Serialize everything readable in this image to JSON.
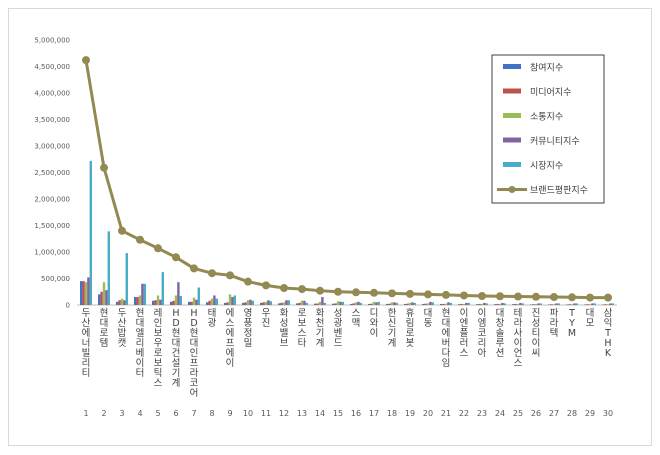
{
  "chart_data": {
    "type": "bar",
    "title": "",
    "xlabel": "",
    "ylabel": "",
    "ylim": [
      0,
      5000000
    ],
    "ytick_step": 500000,
    "ytick_labels": [
      "0",
      "500,000",
      "1,000,000",
      "1,500,000",
      "2,000,000",
      "2,500,000",
      "3,000,000",
      "3,500,000",
      "4,000,000",
      "4,500,000",
      "5,000,000"
    ],
    "grid": false,
    "legend_position": "top-right",
    "ranks": [
      "1",
      "2",
      "3",
      "4",
      "5",
      "6",
      "7",
      "8",
      "9",
      "10",
      "11",
      "12",
      "13",
      "14",
      "15",
      "16",
      "17",
      "18",
      "19",
      "20",
      "21",
      "22",
      "23",
      "24",
      "25",
      "26",
      "27",
      "28",
      "29",
      "30"
    ],
    "categories": [
      "두산에너빌리티",
      "현대로템",
      "두산밥캣",
      "현대엘리베이터",
      "레인보우로보틱스",
      "HD현대건설기계",
      "HD현대인프라코어",
      "태광",
      "에스에프에이",
      "영풍정밀",
      "우진",
      "화성밸브",
      "로보스타",
      "화천기계",
      "성광벤드",
      "스맥",
      "디와이",
      "한신기계",
      "휴림로봇",
      "대동",
      "현대에버다임",
      "이엔플러스",
      "이엠코리아",
      "대창솔루션",
      "테라사이언스",
      "진성티이씨",
      "파라텍",
      "TYM",
      "대모",
      "삼익THK"
    ],
    "series": [
      {
        "name": "참여지수",
        "kind": "bar",
        "color": "#4472c4",
        "values": [
          450000,
          200000,
          60000,
          150000,
          80000,
          60000,
          60000,
          50000,
          40000,
          40000,
          40000,
          30000,
          30000,
          25000,
          25000,
          20000,
          20000,
          20000,
          20000,
          20000,
          20000,
          15000,
          15000,
          15000,
          15000,
          10000,
          10000,
          10000,
          10000,
          10000
        ]
      },
      {
        "name": "미디어지수",
        "kind": "bar",
        "color": "#c0504d",
        "values": [
          450000,
          250000,
          90000,
          150000,
          90000,
          80000,
          60000,
          80000,
          50000,
          50000,
          50000,
          40000,
          40000,
          30000,
          30000,
          30000,
          25000,
          25000,
          25000,
          25000,
          20000,
          20000,
          20000,
          20000,
          20000,
          15000,
          15000,
          15000,
          15000,
          15000
        ]
      },
      {
        "name": "소통지수",
        "kind": "bar",
        "color": "#9bbb59",
        "values": [
          430000,
          430000,
          120000,
          180000,
          180000,
          180000,
          140000,
          120000,
          200000,
          90000,
          60000,
          50000,
          80000,
          60000,
          70000,
          50000,
          60000,
          50000,
          40000,
          30000,
          25000,
          20000,
          20000,
          20000,
          20000,
          20000,
          15000,
          15000,
          15000,
          15000
        ]
      },
      {
        "name": "커뮤니티지수",
        "kind": "bar",
        "color": "#8064a2",
        "values": [
          520000,
          280000,
          90000,
          400000,
          100000,
          430000,
          100000,
          180000,
          150000,
          100000,
          90000,
          90000,
          80000,
          150000,
          60000,
          60000,
          50000,
          50000,
          50000,
          60000,
          50000,
          40000,
          40000,
          40000,
          40000,
          30000,
          30000,
          30000,
          30000,
          30000
        ]
      },
      {
        "name": "시장지수",
        "kind": "bar",
        "color": "#4bacc6",
        "values": [
          2720000,
          1390000,
          980000,
          400000,
          620000,
          170000,
          330000,
          120000,
          180000,
          80000,
          70000,
          90000,
          40000,
          40000,
          60000,
          40000,
          60000,
          40000,
          40000,
          50000,
          40000,
          40000,
          30000,
          30000,
          30000,
          30000,
          30000,
          30000,
          30000,
          30000
        ]
      },
      {
        "name": "브랜드평판지수",
        "kind": "line",
        "color": "#938953",
        "values": [
          4620000,
          2590000,
          1400000,
          1230000,
          1070000,
          900000,
          690000,
          600000,
          560000,
          440000,
          370000,
          320000,
          300000,
          270000,
          250000,
          240000,
          230000,
          220000,
          210000,
          200000,
          190000,
          180000,
          170000,
          165000,
          160000,
          155000,
          150000,
          145000,
          140000,
          140000
        ]
      }
    ]
  }
}
